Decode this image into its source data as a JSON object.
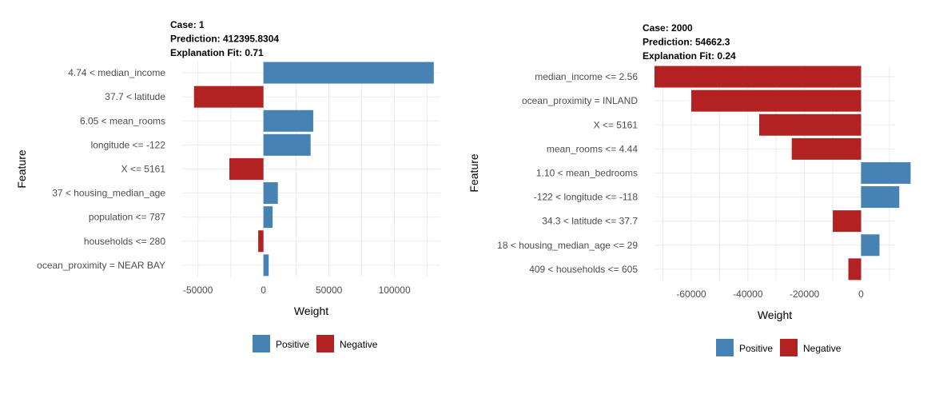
{
  "colors": {
    "positive": "#4682B4",
    "negative": "#B22222"
  },
  "chart_data": [
    {
      "type": "bar",
      "orientation": "horizontal",
      "title_lines": [
        "Case: 1",
        "Prediction: 412395.8304",
        "Explanation Fit: 0.71"
      ],
      "xlabel": "Weight",
      "ylabel": "Feature",
      "xlim": [
        -62000,
        135000
      ],
      "xticks": [
        -50000,
        0,
        50000,
        100000
      ],
      "xtick_labels": [
        "-50000",
        "0",
        "50000",
        "100000"
      ],
      "grid": true,
      "legend": {
        "placement": "bottom",
        "entries": [
          "Positive",
          "Negative"
        ]
      },
      "categories": [
        "4.74 < median_income",
        "37.7 < latitude",
        "6.05 < mean_rooms",
        "longitude <= -122",
        "X <= 5161",
        "37 < housing_median_age",
        "population <= 787",
        "households <= 280",
        "ocean_proximity = NEAR BAY"
      ],
      "values": [
        130000,
        -53000,
        38000,
        36000,
        -26000,
        11000,
        7000,
        -4000,
        4000
      ]
    },
    {
      "type": "bar",
      "orientation": "horizontal",
      "title_lines": [
        "Case: 2000",
        "Prediction: 54662.3",
        "Explanation Fit: 0.24"
      ],
      "xlabel": "Weight",
      "ylabel": "Feature",
      "xlim": [
        -73000,
        12000
      ],
      "xticks": [
        -60000,
        -40000,
        -20000,
        0
      ],
      "xtick_labels": [
        "-60000",
        "-40000",
        "-20000",
        "0"
      ],
      "grid": true,
      "legend": {
        "placement": "bottom",
        "entries": [
          "Positive",
          "Negative"
        ]
      },
      "categories": [
        "median_income <= 2.56",
        "ocean_proximity = INLAND",
        "X <= 5161",
        "mean_rooms <= 4.44",
        "1.10 < mean_bedrooms",
        "-122 < longitude <= -118",
        "34.3 < latitude <= 37.7",
        "18 < housing_median_age <= 29",
        "409 < households <= 605"
      ],
      "values": [
        -73000,
        -60000,
        -36000,
        -24500,
        17500,
        13500,
        -10000,
        6500,
        -4500
      ]
    }
  ]
}
